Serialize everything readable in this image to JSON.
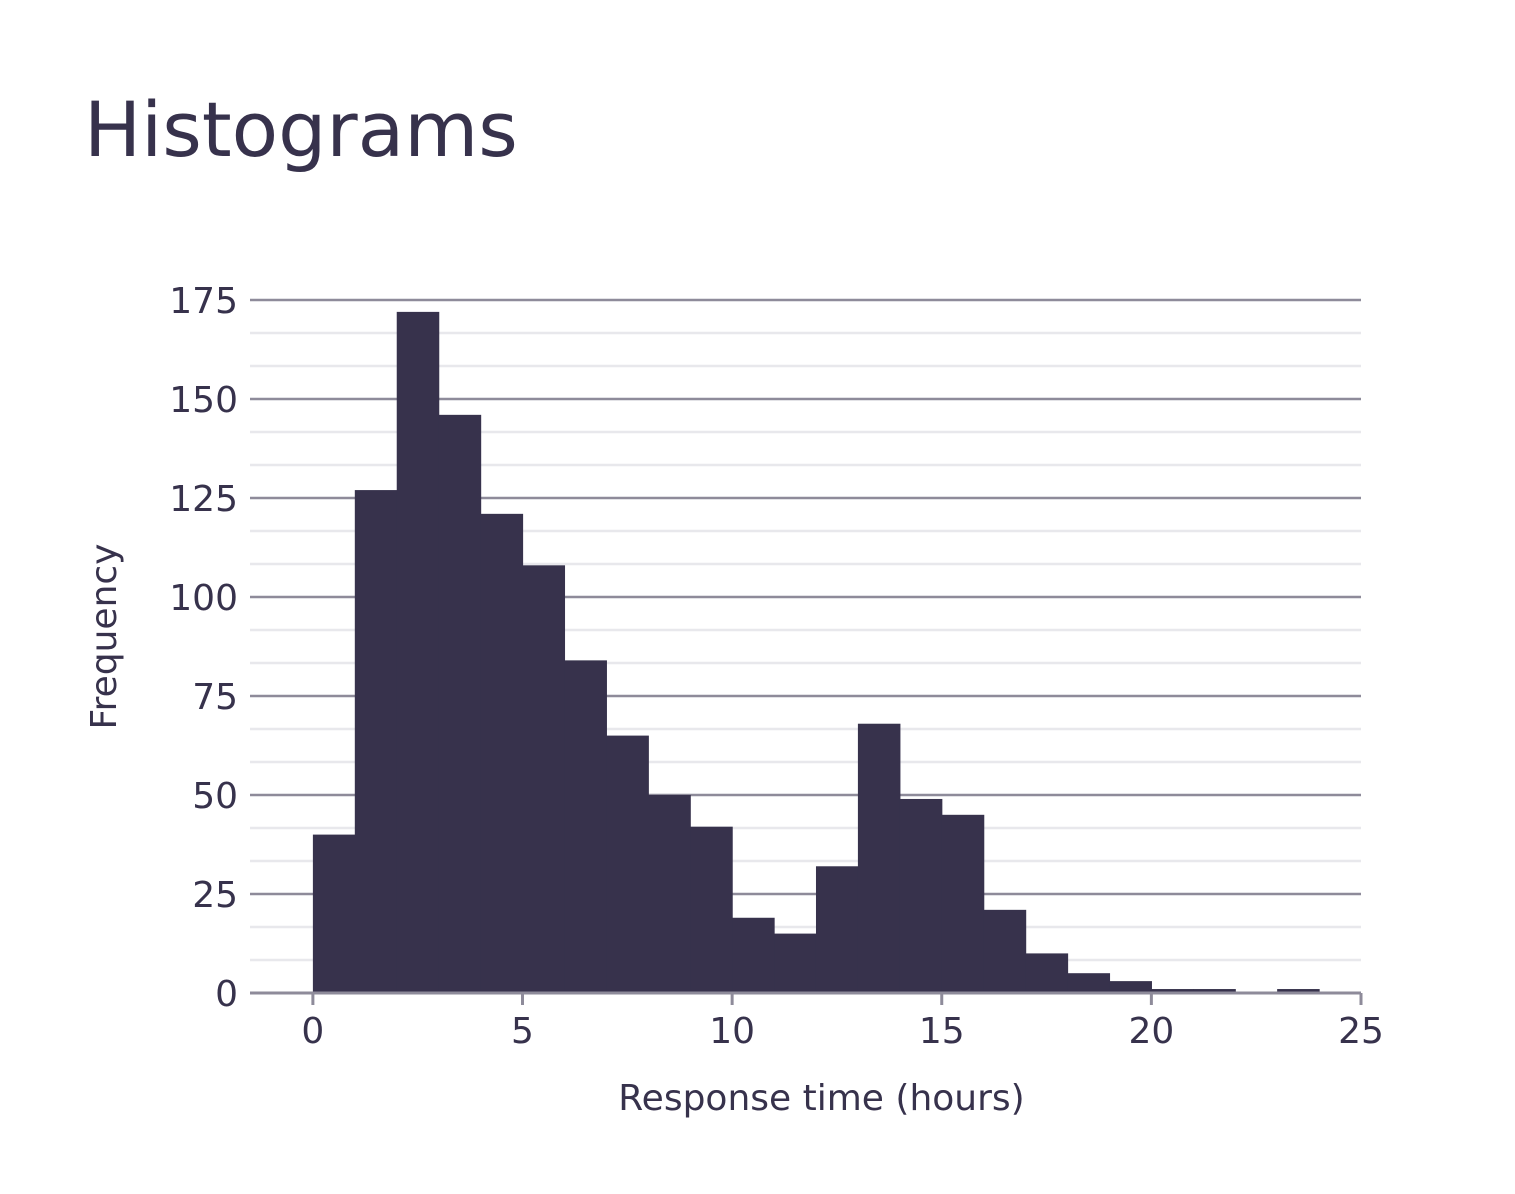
{
  "title": "Histograms",
  "colors": {
    "bar": "#37324c",
    "text": "#37324c",
    "major_grid": "#8e8b9a",
    "minor_grid": "#e8e8ec",
    "axis": "#8e8b9a"
  },
  "chart_data": {
    "type": "bar",
    "subtype": "histogram",
    "title": "Histograms",
    "xlabel": "Response time (hours)",
    "ylabel": "Frequency",
    "xlim": [
      -1.5,
      25
    ],
    "ylim": [
      0,
      175
    ],
    "x_ticks": [
      0,
      5,
      10,
      15,
      20,
      25
    ],
    "y_ticks": [
      0,
      25,
      50,
      75,
      100,
      125,
      150,
      175
    ],
    "y_minor_step": 8.333,
    "grid": true,
    "legend": "none",
    "bins": [
      {
        "start": 0,
        "end": 1,
        "count": 40
      },
      {
        "start": 1,
        "end": 2,
        "count": 127
      },
      {
        "start": 2,
        "end": 3,
        "count": 172
      },
      {
        "start": 3,
        "end": 4,
        "count": 146
      },
      {
        "start": 4,
        "end": 5,
        "count": 121
      },
      {
        "start": 5,
        "end": 6,
        "count": 108
      },
      {
        "start": 6,
        "end": 7,
        "count": 84
      },
      {
        "start": 7,
        "end": 8,
        "count": 65
      },
      {
        "start": 8,
        "end": 9,
        "count": 50
      },
      {
        "start": 9,
        "end": 10,
        "count": 42
      },
      {
        "start": 10,
        "end": 11,
        "count": 19
      },
      {
        "start": 11,
        "end": 12,
        "count": 15
      },
      {
        "start": 12,
        "end": 13,
        "count": 32
      },
      {
        "start": 13,
        "end": 14,
        "count": 68
      },
      {
        "start": 14,
        "end": 15,
        "count": 49
      },
      {
        "start": 15,
        "end": 16,
        "count": 45
      },
      {
        "start": 16,
        "end": 17,
        "count": 21
      },
      {
        "start": 17,
        "end": 18,
        "count": 10
      },
      {
        "start": 18,
        "end": 19,
        "count": 5
      },
      {
        "start": 19,
        "end": 20,
        "count": 3
      },
      {
        "start": 20,
        "end": 21,
        "count": 1
      },
      {
        "start": 21,
        "end": 22,
        "count": 1
      },
      {
        "start": 22,
        "end": 23,
        "count": 0
      },
      {
        "start": 23,
        "end": 24,
        "count": 1
      }
    ]
  }
}
